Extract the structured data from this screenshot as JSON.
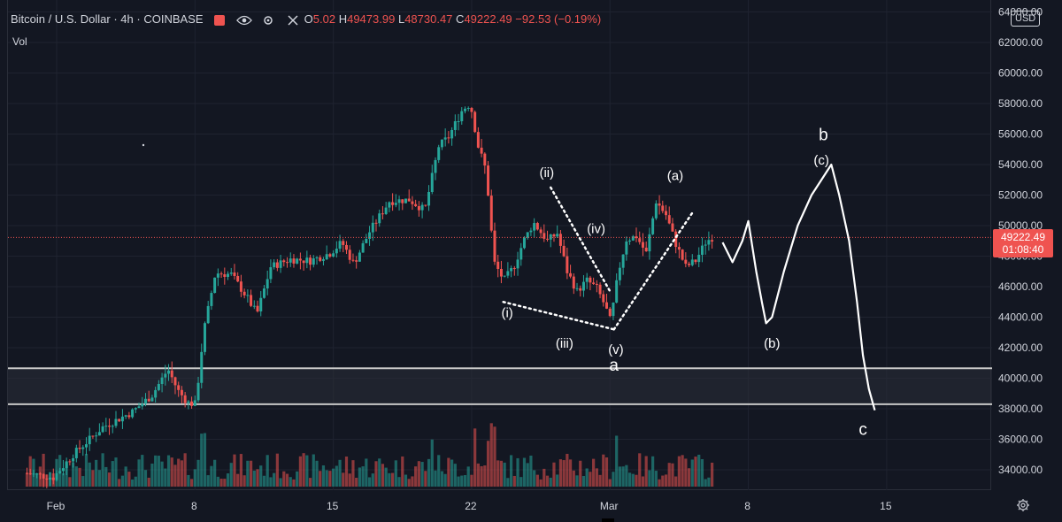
{
  "header": {
    "symbol": "Bitcoin / U.S. Dollar",
    "interval": "4h",
    "exchange": "COINBASE",
    "open_fragment": "5.02",
    "high": "49473.99",
    "low": "48730.47",
    "close": "49222.49",
    "change": "−92.53 (−0.19%)",
    "vol_label": "Vol"
  },
  "price_scale": {
    "currency": "USD",
    "last_price": "49222.49",
    "countdown": "01:08:40"
  },
  "chart_data": {
    "type": "candlestick",
    "title": "Bitcoin / U.S. Dollar",
    "ylim": [
      32800,
      64200
    ],
    "y_ticks": [
      34000,
      36000,
      38000,
      40000,
      42000,
      44000,
      46000,
      48000,
      50000,
      52000,
      54000,
      56000,
      58000,
      60000,
      62000,
      64000
    ],
    "y_tick_labels": [
      "34000.00",
      "36000.00",
      "38000.00",
      "40000.00",
      "42000.00",
      "44000.00",
      "46000.00",
      "48000.00",
      "50000.00",
      "52000.00",
      "54000.00",
      "56000.00",
      "58000.00",
      "60000.00",
      "62000.00",
      "64000.00"
    ],
    "x_domain_days": [
      -1.5,
      33.5
    ],
    "x_ticks": [
      {
        "label": "Feb",
        "day": 0
      },
      {
        "label": "8",
        "day": 7
      },
      {
        "label": "15",
        "day": 14
      },
      {
        "label": "22",
        "day": 21
      },
      {
        "label": "Mar",
        "day": 28
      },
      {
        "label": "8",
        "day": 35
      },
      {
        "label": "15",
        "day": 42
      }
    ],
    "last_price_value": 49222.49,
    "up_color": "#26a69a",
    "down_color": "#ef5350",
    "price_path": [
      {
        "d": -1.5,
        "p": 33800
      },
      {
        "d": 0,
        "p": 33500
      },
      {
        "d": 1,
        "p": 35000
      },
      {
        "d": 2.5,
        "p": 36800
      },
      {
        "d": 4,
        "p": 37800
      },
      {
        "d": 5,
        "p": 38900
      },
      {
        "d": 5.8,
        "p": 40600
      },
      {
        "d": 6.3,
        "p": 39200
      },
      {
        "d": 6.8,
        "p": 38400
      },
      {
        "d": 7.2,
        "p": 38300
      },
      {
        "d": 7.6,
        "p": 43000
      },
      {
        "d": 8.2,
        "p": 46900
      },
      {
        "d": 9,
        "p": 46800
      },
      {
        "d": 9.8,
        "p": 45300
      },
      {
        "d": 10.3,
        "p": 44200
      },
      {
        "d": 11,
        "p": 47300
      },
      {
        "d": 12,
        "p": 47800
      },
      {
        "d": 13,
        "p": 47700
      },
      {
        "d": 14,
        "p": 48200
      },
      {
        "d": 14.6,
        "p": 48900
      },
      {
        "d": 15.2,
        "p": 47500
      },
      {
        "d": 16,
        "p": 49600
      },
      {
        "d": 17,
        "p": 51600
      },
      {
        "d": 18,
        "p": 51700
      },
      {
        "d": 18.8,
        "p": 51000
      },
      {
        "d": 19.5,
        "p": 55200
      },
      {
        "d": 20,
        "p": 55800
      },
      {
        "d": 20.7,
        "p": 57600
      },
      {
        "d": 21.1,
        "p": 58000
      },
      {
        "d": 21.5,
        "p": 55200
      },
      {
        "d": 21.9,
        "p": 53600
      },
      {
        "d": 22.3,
        "p": 47600
      },
      {
        "d": 22.8,
        "p": 46400
      },
      {
        "d": 23.3,
        "p": 47300
      },
      {
        "d": 23.8,
        "p": 49000
      },
      {
        "d": 24.3,
        "p": 50200
      },
      {
        "d": 25,
        "p": 49000
      },
      {
        "d": 25.5,
        "p": 49500
      },
      {
        "d": 26,
        "p": 47000
      },
      {
        "d": 26.5,
        "p": 45700
      },
      {
        "d": 27,
        "p": 46400
      },
      {
        "d": 27.5,
        "p": 45900
      },
      {
        "d": 27.9,
        "p": 44800
      },
      {
        "d": 28.2,
        "p": 43700
      },
      {
        "d": 28.6,
        "p": 47000
      },
      {
        "d": 29,
        "p": 49100
      },
      {
        "d": 29.5,
        "p": 49300
      },
      {
        "d": 30,
        "p": 48200
      },
      {
        "d": 30.5,
        "p": 51600
      },
      {
        "d": 31,
        "p": 50700
      },
      {
        "d": 31.5,
        "p": 48800
      },
      {
        "d": 32,
        "p": 47300
      },
      {
        "d": 32.5,
        "p": 47700
      },
      {
        "d": 33,
        "p": 48900
      },
      {
        "d": 33.3,
        "p": 49222
      }
    ],
    "support_zone": {
      "upper": 40650,
      "lower": 38300
    },
    "wave_labels": [
      {
        "text": "(i)",
        "d": 22.8,
        "p": 44000
      },
      {
        "text": "(ii)",
        "d": 24.8,
        "p": 53200
      },
      {
        "text": "(iii)",
        "d": 25.7,
        "p": 42000
      },
      {
        "text": "(iv)",
        "d": 27.3,
        "p": 49500
      },
      {
        "text": "(v)",
        "d": 28.3,
        "p": 41600
      },
      {
        "text": "a",
        "d": 28.2,
        "p": 40500
      },
      {
        "text": "(a)",
        "d": 31.3,
        "p": 53000
      },
      {
        "text": "(b)",
        "d": 36.2,
        "p": 42000
      },
      {
        "text": "b",
        "d": 38.8,
        "p": 55600
      },
      {
        "text": "(c)",
        "d": 38.7,
        "p": 54000
      },
      {
        "text": "c",
        "d": 40.8,
        "p": 36300
      }
    ],
    "projection_path": [
      {
        "d": 33.7,
        "p": 48900
      },
      {
        "d": 34.2,
        "p": 47600
      },
      {
        "d": 34.7,
        "p": 49000
      },
      {
        "d": 35,
        "p": 50300
      },
      {
        "d": 35.4,
        "p": 47000
      },
      {
        "d": 35.7,
        "p": 44900
      },
      {
        "d": 35.9,
        "p": 43600
      },
      {
        "d": 36.2,
        "p": 44000
      },
      {
        "d": 36.8,
        "p": 47000
      },
      {
        "d": 37.5,
        "p": 50000
      },
      {
        "d": 38.2,
        "p": 52000
      },
      {
        "d": 38.9,
        "p": 53400
      },
      {
        "d": 39.2,
        "p": 54000
      },
      {
        "d": 39.6,
        "p": 52000
      },
      {
        "d": 40.1,
        "p": 49000
      },
      {
        "d": 40.5,
        "p": 45000
      },
      {
        "d": 40.8,
        "p": 41500
      },
      {
        "d": 41.1,
        "p": 39300
      },
      {
        "d": 41.4,
        "p": 37900
      }
    ],
    "trendlines": [
      {
        "from": {
          "d": 22.6,
          "p": 45000
        },
        "to": {
          "d": 28.2,
          "p": 43200
        }
      },
      {
        "from": {
          "d": 25.0,
          "p": 52500
        },
        "to": {
          "d": 28.0,
          "p": 45700
        }
      },
      {
        "from": {
          "d": 28.2,
          "p": 43200
        },
        "to": {
          "d": 32.2,
          "p": 50900
        }
      }
    ]
  }
}
